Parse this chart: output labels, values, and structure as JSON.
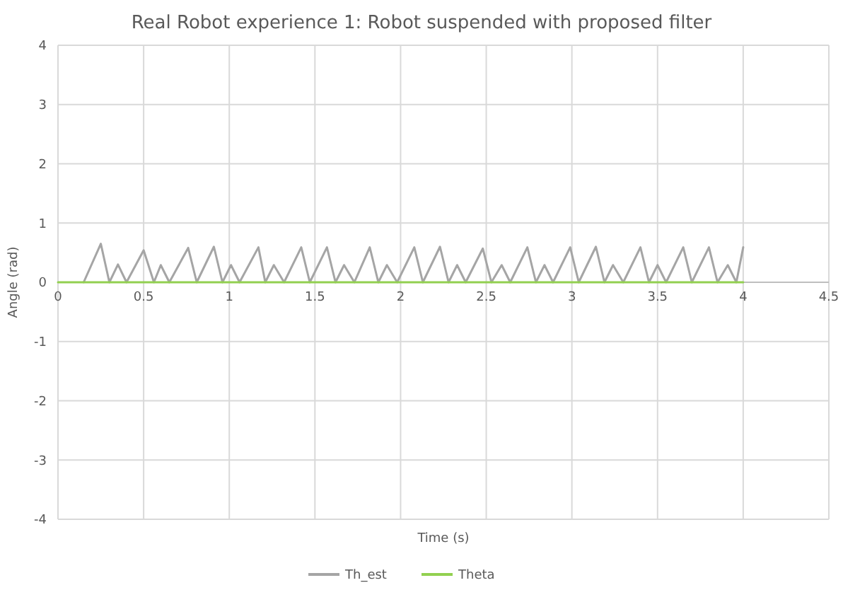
{
  "chart_data": {
    "type": "line",
    "title": "Real Robot experience 1: Robot suspended with proposed filter",
    "xlabel": "Time (s)",
    "ylabel": "Angle (rad)",
    "xlim": [
      0,
      4.5
    ],
    "xticks": [
      0,
      0.5,
      1,
      1.5,
      2,
      2.5,
      3,
      3.5,
      4,
      4.5
    ],
    "ylim": [
      -4,
      4
    ],
    "yticks": [
      -4,
      -3,
      -2,
      -1,
      0,
      1,
      2,
      3,
      4
    ],
    "grid": true,
    "legend": "bottom",
    "marker": "none",
    "line_style": "solid",
    "series": [
      {
        "name": "Th_est",
        "color": "#a5a5a5",
        "x": [
          0.15,
          0.25,
          0.3,
          0.35,
          0.4,
          0.5,
          0.56,
          0.6,
          0.65,
          0.76,
          0.81,
          0.91,
          0.96,
          1.01,
          1.06,
          1.17,
          1.21,
          1.26,
          1.32,
          1.42,
          1.47,
          1.57,
          1.62,
          1.67,
          1.73,
          1.82,
          1.87,
          1.92,
          1.98,
          2.08,
          2.13,
          2.23,
          2.28,
          2.33,
          2.38,
          2.48,
          2.53,
          2.59,
          2.64,
          2.74,
          2.79,
          2.84,
          2.89,
          2.99,
          3.04,
          3.14,
          3.19,
          3.24,
          3.3,
          3.4,
          3.45,
          3.5,
          3.55,
          3.65,
          3.7,
          3.8,
          3.85,
          3.91,
          3.96,
          4.0
        ],
        "values": [
          0,
          0.65,
          0,
          0.3,
          0,
          0.54,
          0,
          0.29,
          0,
          0.58,
          0,
          0.6,
          0,
          0.29,
          0,
          0.59,
          0,
          0.29,
          0,
          0.59,
          0,
          0.59,
          0,
          0.29,
          0,
          0.59,
          0,
          0.29,
          0,
          0.59,
          0,
          0.6,
          0,
          0.29,
          0,
          0.57,
          0,
          0.29,
          0,
          0.59,
          0,
          0.29,
          0,
          0.59,
          0,
          0.6,
          0,
          0.29,
          0,
          0.59,
          0,
          0.29,
          0,
          0.59,
          0,
          0.59,
          0,
          0.29,
          0,
          0.59
        ]
      },
      {
        "name": "Theta",
        "color": "#92d050",
        "x": [
          0,
          4
        ],
        "values": [
          0,
          0
        ]
      }
    ]
  }
}
